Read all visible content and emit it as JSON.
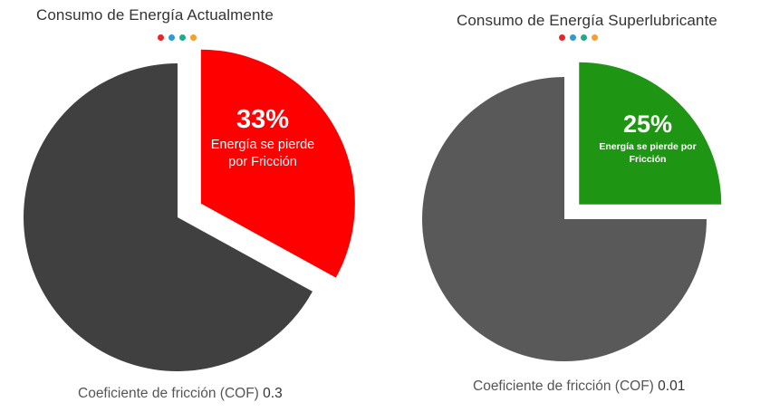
{
  "chart_data": [
    {
      "type": "pie",
      "title": "Consumo de Energía Actualmente",
      "slices": [
        {
          "label": "Energía se pierde por Fricción",
          "value": 33,
          "percent_label": "33%",
          "color": "#ff0000",
          "exploded": true
        },
        {
          "label": "",
          "value": 67,
          "color": "#404040",
          "exploded": false
        }
      ],
      "highlight": {
        "percent": "33%",
        "description": "Energía se pierde por Fricción"
      },
      "caption": {
        "text": "Coeficiente de fricción (COF)",
        "value": "0.3"
      }
    },
    {
      "type": "pie",
      "title": "Consumo de Energía Superlubricante",
      "slices": [
        {
          "label": "Energía se pierde por Fricción",
          "value": 25,
          "percent_label": "25%",
          "color": "#1e9614",
          "exploded": true
        },
        {
          "label": "",
          "value": 75,
          "color": "#595959",
          "exploded": false
        }
      ],
      "highlight": {
        "percent": "25%",
        "description": "Energía se pierde por Fricción"
      },
      "caption": {
        "text": "Coeficiente de fricción (COF)",
        "value": "0.01"
      }
    }
  ],
  "decoration": {
    "dot_colors": [
      "#e8252b",
      "#2d9ad6",
      "#22a88a",
      "#f3a12b"
    ]
  }
}
